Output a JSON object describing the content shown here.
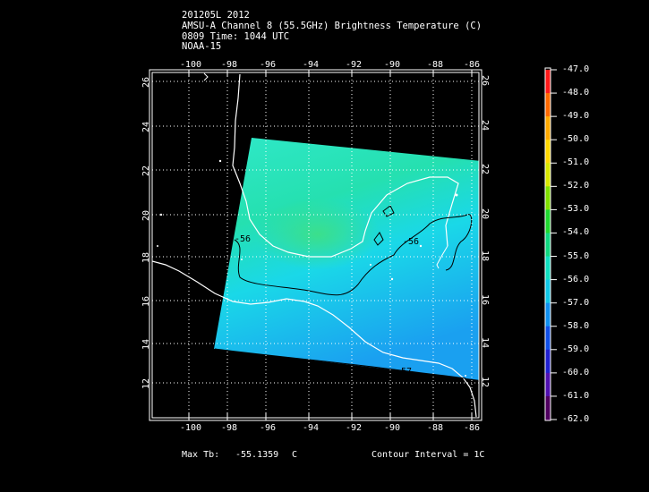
{
  "header": {
    "line1": "201205L 2012",
    "line2": "AMSU-A Channel 8 (55.5GHz) Brightness Temperature (C)",
    "line3": "0809 Time: 1044 UTC",
    "line4": "NOAA-15"
  },
  "map": {
    "lon_ticks": [
      "-100",
      "-98",
      "-96",
      "-94",
      "-92",
      "-90",
      "-88",
      "-86"
    ],
    "lat_ticks": [
      "26",
      "24",
      "22",
      "20",
      "18",
      "16",
      "14",
      "12"
    ],
    "contour_labels": [
      "-56",
      "-56",
      "-57"
    ],
    "colors": {
      "swath_light": "#2fe8c8",
      "swath_mid": "#1ad8e8",
      "swath_deep": "#1aa0f0",
      "coast": "#ffffff",
      "contour": "#000000"
    }
  },
  "colorbar": {
    "labels": [
      "-47.0",
      "-48.0",
      "-49.0",
      "-50.0",
      "-51.0",
      "-52.0",
      "-53.0",
      "-54.0",
      "-55.0",
      "-56.0",
      "-57.0",
      "-58.0",
      "-59.0",
      "-60.0",
      "-61.0",
      "-62.0"
    ],
    "colors": [
      "#ff1a1a",
      "#ff6a00",
      "#ffaa00",
      "#ffd800",
      "#d8e800",
      "#80e000",
      "#20d830",
      "#10d880",
      "#10e0c0",
      "#10c8e8",
      "#1090f0",
      "#1050e8",
      "#2020d0",
      "#5010b0",
      "#500060",
      "#000000"
    ]
  },
  "footer": {
    "max_tb_label": "Max Tb:",
    "max_tb_value": "-55.1359",
    "max_tb_unit": "C",
    "contour_interval": "Contour Interval = 1C"
  }
}
